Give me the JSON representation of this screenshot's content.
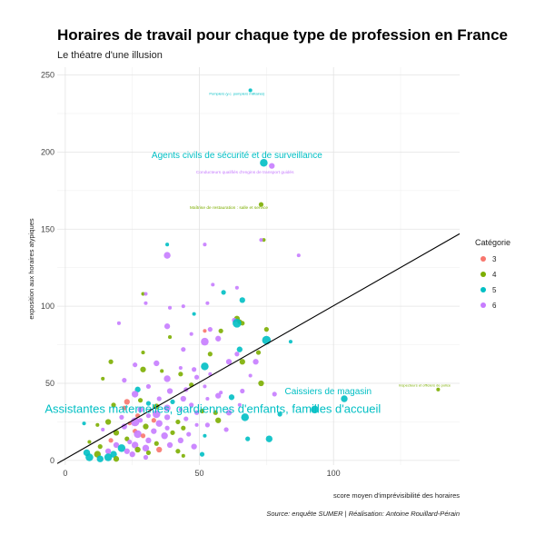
{
  "colors": {
    "3": "#F8766D",
    "4": "#7CAE00",
    "5": "#00BFC4",
    "6": "#C77CFF"
  },
  "chart_data": {
    "type": "scatter",
    "title": "Horaires de travail pour chaque type de profession en France",
    "subtitle": "Le théatre d'une illusion",
    "xlabel": "score moyen d'imprévisibilité des horaires",
    "ylabel": "exposition aux horaires atypiques",
    "caption": "Source: enquête SUMER | Réalisation: Antoine Rouillard-Pérain",
    "xlim": [
      -3,
      147
    ],
    "ylim": [
      -3,
      255
    ],
    "x_ticks": [
      0,
      50,
      100
    ],
    "y_ticks": [
      0,
      50,
      100,
      150,
      200,
      250
    ],
    "grid": true,
    "legend": {
      "title": "Catégorie",
      "position": "right",
      "entries": [
        "3",
        "4",
        "5",
        "6"
      ]
    },
    "trend_line": {
      "x": [
        -3,
        147
      ],
      "y": [
        -2,
        147
      ]
    },
    "annotations": [
      {
        "text": "Pompiers (y.c. pompiers militaires)",
        "x": 64,
        "y": 237,
        "cat": "5",
        "size": 4
      },
      {
        "text": "Agents civils de sécurité et de surveillance",
        "x": 64,
        "y": 196,
        "cat": "5",
        "size": 10
      },
      {
        "text": "Conducteurs qualifiés d'engins de transport guidés",
        "x": 67,
        "y": 186,
        "cat": "6",
        "size": 4.8
      },
      {
        "text": "Maîtrise de restauration : salle et service",
        "x": 61,
        "y": 163,
        "cat": "4",
        "size": 4.8
      },
      {
        "text": "Inspecteurs et officiers de police",
        "x": 134,
        "y": 48,
        "cat": "4",
        "size": 4
      },
      {
        "text": "Caissiers de magasin",
        "x": 98,
        "y": 43,
        "cat": "5",
        "size": 10
      },
      {
        "text": "Assistantes maternelles, gardiennes d'enfants, familles d'accueil",
        "x": 55,
        "y": 31,
        "cat": "5",
        "size": 13
      }
    ],
    "points": [
      [
        69,
        240,
        "5",
        3
      ],
      [
        74,
        193,
        "5",
        7
      ],
      [
        77,
        191,
        "6",
        5
      ],
      [
        73,
        166,
        "4",
        4
      ],
      [
        74,
        143,
        "4",
        3
      ],
      [
        73,
        143,
        "6",
        3
      ],
      [
        38,
        140,
        "5",
        3
      ],
      [
        52,
        140,
        "6",
        3
      ],
      [
        87,
        133,
        "6",
        3
      ],
      [
        38,
        133,
        "6",
        6
      ],
      [
        55,
        114,
        "6",
        3
      ],
      [
        64,
        112,
        "6",
        3
      ],
      [
        59,
        109,
        "5",
        4
      ],
      [
        29,
        108,
        "4",
        3
      ],
      [
        30,
        108,
        "6",
        3
      ],
      [
        66,
        104,
        "5",
        5
      ],
      [
        30,
        102,
        "6",
        3
      ],
      [
        53,
        102,
        "6",
        3
      ],
      [
        44,
        100,
        "6",
        3
      ],
      [
        39,
        99,
        "6",
        3
      ],
      [
        48,
        95,
        "5",
        3
      ],
      [
        64,
        92,
        "4",
        5
      ],
      [
        63,
        91,
        "6",
        4
      ],
      [
        20,
        89,
        "6",
        3
      ],
      [
        65,
        90,
        "4",
        4
      ],
      [
        66,
        89,
        "4",
        4
      ],
      [
        64,
        89,
        "5",
        8
      ],
      [
        38,
        87,
        "6",
        5
      ],
      [
        75,
        85,
        "4",
        4
      ],
      [
        54,
        85,
        "6",
        4
      ],
      [
        52,
        84,
        "3",
        3
      ],
      [
        58,
        84,
        "4",
        4
      ],
      [
        47,
        82,
        "6",
        3
      ],
      [
        39,
        80,
        "4",
        3
      ],
      [
        57,
        79,
        "6",
        5
      ],
      [
        52,
        77,
        "6",
        7
      ],
      [
        75,
        78,
        "5",
        8
      ],
      [
        84,
        77,
        "5",
        3
      ],
      [
        65,
        72,
        "5",
        5
      ],
      [
        44,
        72,
        "6",
        4
      ],
      [
        72,
        70,
        "4",
        4
      ],
      [
        29,
        70,
        "4",
        3
      ],
      [
        54,
        69,
        "4",
        4
      ],
      [
        64,
        69,
        "6",
        4
      ],
      [
        17,
        64,
        "4",
        4
      ],
      [
        61,
        64,
        "6",
        5
      ],
      [
        34,
        63,
        "6",
        5
      ],
      [
        66,
        64,
        "4",
        5
      ],
      [
        71,
        64,
        "6",
        5
      ],
      [
        52,
        61,
        "5",
        7
      ],
      [
        26,
        62,
        "6",
        4
      ],
      [
        48,
        59,
        "6",
        4
      ],
      [
        43,
        60,
        "6",
        3
      ],
      [
        29,
        59,
        "4",
        5
      ],
      [
        36,
        58,
        "4",
        3
      ],
      [
        69,
        55,
        "6",
        3
      ],
      [
        54,
        56,
        "6",
        3
      ],
      [
        43,
        56,
        "4",
        4
      ],
      [
        49,
        54,
        "6",
        4
      ],
      [
        38,
        53,
        "6",
        6
      ],
      [
        22,
        52,
        "6",
        4
      ],
      [
        14,
        53,
        "4",
        3
      ],
      [
        47,
        49,
        "4",
        4
      ],
      [
        52,
        48,
        "6",
        3
      ],
      [
        73,
        50,
        "4",
        5
      ],
      [
        31,
        48,
        "6",
        4
      ],
      [
        27,
        46,
        "5",
        5
      ],
      [
        39,
        45,
        "6",
        5
      ],
      [
        45,
        46,
        "6",
        4
      ],
      [
        58,
        44,
        "6",
        3
      ],
      [
        66,
        45,
        "6",
        4
      ],
      [
        78,
        43,
        "6",
        4
      ],
      [
        26,
        43,
        "6",
        6
      ],
      [
        57,
        42,
        "6",
        5
      ],
      [
        62,
        41,
        "5",
        5
      ],
      [
        35,
        40,
        "6",
        4
      ],
      [
        44,
        40,
        "6",
        5
      ],
      [
        104,
        40,
        "5",
        6
      ],
      [
        139,
        46,
        "4",
        3
      ],
      [
        53,
        40,
        "6",
        3
      ],
      [
        28,
        39,
        "4",
        4
      ],
      [
        23,
        38,
        "3",
        5
      ],
      [
        31,
        37,
        "5",
        4
      ],
      [
        40,
        38,
        "5",
        4
      ],
      [
        18,
        36,
        "4",
        4
      ],
      [
        47,
        36,
        "6",
        4
      ],
      [
        65,
        36,
        "6",
        3
      ],
      [
        34,
        35,
        "4",
        5
      ],
      [
        22,
        34,
        "3",
        4
      ],
      [
        38,
        34,
        "6",
        6
      ],
      [
        28,
        33,
        "6",
        5
      ],
      [
        93,
        33,
        "5",
        7
      ],
      [
        43,
        33,
        "6",
        3
      ],
      [
        51,
        32,
        "4",
        4
      ],
      [
        49,
        31,
        "6",
        4
      ],
      [
        61,
        31,
        "6",
        5
      ],
      [
        56,
        31,
        "4",
        4
      ],
      [
        34,
        30,
        "6",
        7
      ],
      [
        31,
        29,
        "6",
        4
      ],
      [
        27,
        29,
        "3",
        4
      ],
      [
        21,
        28,
        "6",
        4
      ],
      [
        67,
        28,
        "5",
        7
      ],
      [
        80,
        30,
        "5",
        4
      ],
      [
        38,
        28,
        "6",
        5
      ],
      [
        45,
        27,
        "6",
        4
      ],
      [
        57,
        26,
        "4",
        5
      ],
      [
        33,
        26,
        "3",
        4
      ],
      [
        28,
        26,
        "6",
        4
      ],
      [
        16,
        25,
        "4",
        5
      ],
      [
        42,
        25,
        "4",
        4
      ],
      [
        26,
        25,
        "6",
        8
      ],
      [
        7,
        24,
        "5",
        3
      ],
      [
        35,
        24,
        "6",
        6
      ],
      [
        24,
        24,
        "3",
        3
      ],
      [
        12,
        23,
        "4",
        3
      ],
      [
        49,
        23,
        "6",
        3
      ],
      [
        53,
        23,
        "6",
        4
      ],
      [
        30,
        22,
        "4",
        5
      ],
      [
        22,
        22,
        "6",
        5
      ],
      [
        38,
        21,
        "6",
        4
      ],
      [
        44,
        21,
        "4",
        4
      ],
      [
        60,
        20,
        "6",
        4
      ],
      [
        14,
        20,
        "6",
        3
      ],
      [
        26,
        19,
        "3",
        4
      ],
      [
        33,
        19,
        "6",
        5
      ],
      [
        40,
        18,
        "4",
        4
      ],
      [
        19,
        18,
        "4",
        5
      ],
      [
        27,
        17,
        "6",
        7
      ],
      [
        46,
        17,
        "6",
        4
      ],
      [
        37,
        16,
        "6",
        6
      ],
      [
        29,
        16,
        "3",
        4
      ],
      [
        52,
        16,
        "5",
        3
      ],
      [
        68,
        14,
        "5",
        4
      ],
      [
        76,
        14,
        "5",
        6
      ],
      [
        23,
        14,
        "4",
        4
      ],
      [
        17,
        13,
        "3",
        4
      ],
      [
        31,
        13,
        "6",
        5
      ],
      [
        43,
        13,
        "6",
        5
      ],
      [
        24,
        12,
        "6",
        4
      ],
      [
        9,
        12,
        "4",
        3
      ],
      [
        34,
        11,
        "4",
        4
      ],
      [
        26,
        10,
        "6",
        6
      ],
      [
        19,
        10,
        "6",
        5
      ],
      [
        39,
        10,
        "6",
        5
      ],
      [
        48,
        9,
        "6",
        5
      ],
      [
        13,
        9,
        "4",
        4
      ],
      [
        30,
        8,
        "6",
        6
      ],
      [
        21,
        8,
        "5",
        7
      ],
      [
        35,
        7,
        "3",
        5
      ],
      [
        27,
        7,
        "4",
        5
      ],
      [
        16,
        6,
        "6",
        5
      ],
      [
        42,
        6,
        "4",
        4
      ],
      [
        23,
        6,
        "6",
        5
      ],
      [
        8,
        5,
        "5",
        6
      ],
      [
        51,
        4,
        "5",
        4
      ],
      [
        31,
        5,
        "4",
        4
      ],
      [
        18,
        4,
        "5",
        6
      ],
      [
        12,
        4,
        "4",
        6
      ],
      [
        25,
        4,
        "6",
        5
      ],
      [
        44,
        3,
        "4",
        3
      ],
      [
        16,
        2,
        "5",
        7
      ],
      [
        9,
        2,
        "5",
        7
      ],
      [
        19,
        1,
        "4",
        5
      ],
      [
        13,
        1,
        "5",
        6
      ],
      [
        30,
        2,
        "6",
        4
      ]
    ]
  }
}
